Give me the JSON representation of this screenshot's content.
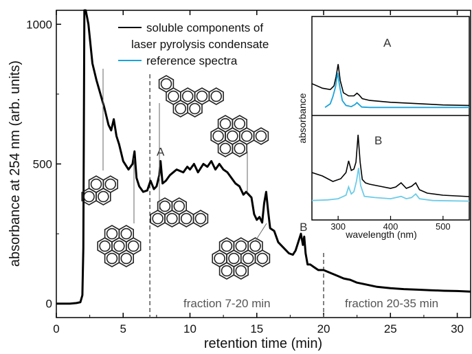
{
  "chart_data": {
    "type": "line",
    "xlabel": "retention time (min)",
    "ylabel": "absorbance at 254 nm (arb. units)",
    "xlim": [
      0,
      31
    ],
    "ylim": [
      -50,
      1050
    ],
    "x_ticks": [
      "0",
      "5",
      "10",
      "15",
      "20",
      "25",
      "30"
    ],
    "x_tick_values": [
      0,
      5,
      10,
      15,
      20,
      25,
      30
    ],
    "y_ticks": [
      "0",
      "500",
      "1000"
    ],
    "y_tick_values": [
      0,
      500,
      1000
    ],
    "legend": {
      "position": "top-right",
      "entries": [
        {
          "label_line1": "soluble components of",
          "label_line2": "laser pyrolysis condensate",
          "color": "#000000"
        },
        {
          "label_line1": "reference spectra",
          "color": "#1aa3d9"
        }
      ]
    },
    "series": [
      {
        "name": "soluble components of laser pyrolysis condensate",
        "color": "#000000",
        "x": [
          0,
          1,
          1.5,
          1.8,
          1.95,
          2.02,
          2.1,
          2.2,
          2.4,
          2.7,
          3.0,
          3.3,
          3.6,
          3.9,
          4.1,
          4.3,
          4.5,
          4.7,
          5.0,
          5.4,
          5.7,
          5.85,
          6.0,
          6.2,
          6.5,
          6.8,
          7.05,
          7.3,
          7.5,
          7.7,
          7.8,
          7.95,
          8.2,
          8.5,
          9.0,
          9.5,
          9.8,
          10.0,
          10.3,
          10.6,
          11.0,
          11.3,
          11.6,
          11.9,
          12.2,
          12.5,
          12.8,
          13.1,
          13.4,
          13.7,
          14.0,
          14.2,
          14.4,
          14.6,
          14.8,
          15.0,
          15.2,
          15.4,
          15.55,
          15.7,
          15.85,
          16.0,
          16.3,
          16.6,
          17.0,
          17.4,
          17.7,
          17.9,
          18.1,
          18.3,
          18.45,
          18.55,
          18.65,
          18.8,
          19.0,
          19.3,
          19.6,
          20.0,
          20.5,
          21.0,
          21.5,
          22.0,
          22.5,
          23.0,
          24.0,
          25.0,
          26.0,
          27.0,
          28.0,
          29.0,
          30.0,
          31.0
        ],
        "y": [
          0,
          0,
          2,
          5,
          30,
          200,
          1050,
          1050,
          1000,
          860,
          800,
          750,
          700,
          640,
          620,
          660,
          600,
          570,
          510,
          480,
          500,
          545,
          450,
          420,
          400,
          405,
          440,
          410,
          420,
          460,
          510,
          430,
          440,
          460,
          480,
          470,
          490,
          480,
          500,
          470,
          500,
          490,
          510,
          480,
          500,
          480,
          470,
          450,
          430,
          420,
          390,
          400,
          390,
          380,
          320,
          300,
          310,
          290,
          360,
          400,
          330,
          270,
          260,
          220,
          200,
          180,
          175,
          190,
          220,
          250,
          210,
          240,
          180,
          140,
          140,
          130,
          120,
          120,
          110,
          100,
          90,
          85,
          75,
          70,
          60,
          55,
          52,
          50,
          48,
          46,
          45,
          43
        ]
      }
    ],
    "fraction_dividers": [
      7,
      20
    ],
    "fraction_labels": [
      "fraction 7-20 min",
      "fraction 20-35 min"
    ],
    "peak_labels": [
      {
        "label": "A",
        "x": 7.8,
        "y": 530
      },
      {
        "label": "B",
        "x": 18.5,
        "y": 260
      }
    ],
    "insets": [
      {
        "ylabel": "absorbance",
        "label": "A",
        "xlim": [
          250,
          550
        ],
        "series": [
          {
            "name": "sample",
            "color": "#000000",
            "x": [
              250,
              270,
              285,
              292,
              296,
              300,
              304,
              310,
              320,
              330,
              336,
              340,
              346,
              360,
              400,
              450,
              500,
              550
            ],
            "y": [
              0.55,
              0.45,
              0.42,
              0.5,
              0.7,
              0.98,
              0.62,
              0.35,
              0.28,
              0.28,
              0.34,
              0.3,
              0.22,
              0.18,
              0.14,
              0.11,
              0.08,
              0.07
            ]
          },
          {
            "name": "reference",
            "color": "#1aa3d9",
            "x": [
              275,
              285,
              290,
              295,
              299,
              303,
              308,
              315,
              325,
              332,
              336,
              340,
              345,
              360,
              400,
              450,
              500,
              550
            ],
            "y": [
              0.03,
              0.12,
              0.3,
              0.55,
              0.9,
              0.55,
              0.2,
              0.08,
              0.05,
              0.1,
              0.15,
              0.1,
              0.04,
              0.03,
              0.03,
              0.03,
              0.03,
              0.03
            ]
          }
        ]
      },
      {
        "label": "B",
        "xlabel": "wavelength (nm)",
        "xlim": [
          250,
          550
        ],
        "x_ticks": [
          "300",
          "400",
          "500"
        ],
        "x_tick_values": [
          300,
          400,
          500
        ],
        "series": [
          {
            "name": "sample",
            "color": "#000000",
            "x": [
              250,
              270,
              290,
              305,
              315,
              320,
              325,
              330,
              334,
              338,
              342,
              346,
              352,
              360,
              380,
              400,
              410,
              420,
              430,
              440,
              448,
              455,
              470,
              500,
              550
            ],
            "y": [
              0.45,
              0.4,
              0.32,
              0.36,
              0.45,
              0.62,
              0.48,
              0.5,
              0.6,
              1.0,
              0.6,
              0.35,
              0.3,
              0.28,
              0.25,
              0.22,
              0.24,
              0.3,
              0.22,
              0.25,
              0.3,
              0.2,
              0.15,
              0.12,
              0.1
            ]
          },
          {
            "name": "reference",
            "color": "#6ccbe8",
            "x": [
              250,
              280,
              300,
              315,
              320,
              325,
              330,
              335,
              339,
              343,
              350,
              370,
              400,
              420,
              430,
              440,
              448,
              455,
              480,
              550
            ],
            "y": [
              0.05,
              0.06,
              0.08,
              0.14,
              0.28,
              0.16,
              0.2,
              0.38,
              0.6,
              0.3,
              0.12,
              0.1,
              0.08,
              0.12,
              0.08,
              0.1,
              0.16,
              0.08,
              0.05,
              0.04
            ]
          }
        ]
      }
    ]
  }
}
